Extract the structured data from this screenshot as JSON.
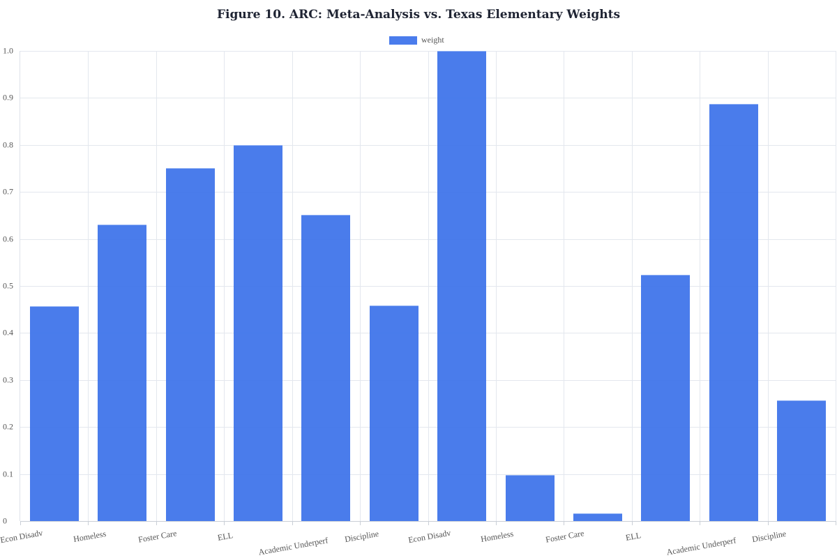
{
  "chart_data": {
    "type": "bar",
    "title": "Figure 10. ARC: Meta-Analysis vs. Texas Elementary Weights",
    "xlabel": "",
    "ylabel": "",
    "ylim": [
      0,
      1.0
    ],
    "yticks": [
      "0",
      "0.1",
      "0.2",
      "0.3",
      "0.4",
      "0.5",
      "0.6",
      "0.7",
      "0.8",
      "0.9",
      "1.0"
    ],
    "grid": true,
    "legend_position": "top-center",
    "categories": [
      "Econ Disadv",
      "Homeless",
      "Foster Care",
      "ELL",
      "Academic Underperf",
      "Discipline",
      "Econ Disadv",
      "Homeless",
      "Foster Care",
      "ELL",
      "Academic Underperf",
      "Discipline"
    ],
    "series": [
      {
        "name": "weight",
        "color": "#4a7cec",
        "values": [
          0.457,
          0.631,
          0.751,
          0.8,
          0.651,
          0.458,
          1.0,
          0.098,
          0.016,
          0.524,
          0.887,
          0.257
        ]
      }
    ]
  },
  "legend": {
    "label": "weight"
  }
}
